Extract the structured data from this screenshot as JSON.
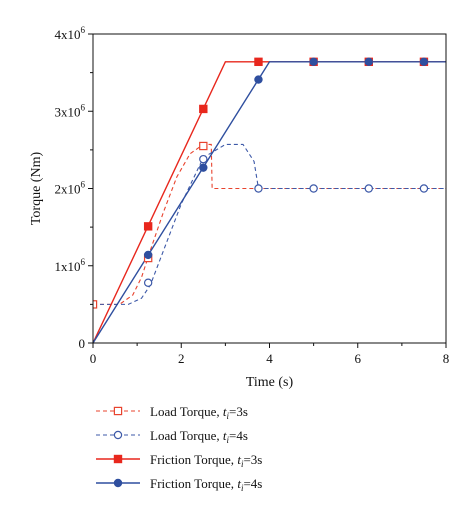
{
  "chart_data": {
    "type": "line",
    "xlabel": "Time (s)",
    "ylabel": "Torque (Nm)",
    "xlim": [
      0,
      8
    ],
    "ylim": [
      0,
      4000000
    ],
    "x_ticks": [
      0,
      2,
      4,
      6,
      8
    ],
    "x_tick_labels": [
      "0",
      "2",
      "4",
      "6",
      "8"
    ],
    "y_ticks": [
      0,
      1000000,
      2000000,
      3000000,
      4000000
    ],
    "y_tick_labels": [
      {
        "base": "0",
        "exp": ""
      },
      {
        "base": "1x10",
        "exp": "6"
      },
      {
        "base": "2x10",
        "exp": "6"
      },
      {
        "base": "3x10",
        "exp": "6"
      },
      {
        "base": "4x10",
        "exp": "6"
      }
    ],
    "grid": false,
    "legend_position": "bottom",
    "series": [
      {
        "name": "Load Torque, t_i=3s",
        "label_main": "Load Torque, ",
        "label_var": "t",
        "label_sub": "i",
        "label_tail": "=3s",
        "color": "#e8432e",
        "dash": true,
        "marker": "square-open",
        "curve": [
          [
            0,
            500000
          ],
          [
            0.6,
            500000
          ],
          [
            0.9,
            620000
          ],
          [
            1.1,
            850000
          ],
          [
            1.3,
            1200000
          ],
          [
            1.6,
            1700000
          ],
          [
            1.9,
            2150000
          ],
          [
            2.2,
            2450000
          ],
          [
            2.5,
            2570000
          ],
          [
            2.68,
            2570000
          ],
          [
            2.7,
            2000000
          ],
          [
            8,
            2000000
          ]
        ],
        "markers": [
          [
            0,
            500000
          ],
          [
            1.25,
            1100000
          ],
          [
            2.5,
            2550000
          ]
        ]
      },
      {
        "name": "Load Torque, t_i=4s",
        "label_main": "Load Torque, ",
        "label_var": "t",
        "label_sub": "i",
        "label_tail": "=4s",
        "color": "#3d59a8",
        "dash": true,
        "marker": "circle-open",
        "curve": [
          [
            0,
            500000
          ],
          [
            0.8,
            500000
          ],
          [
            1.1,
            580000
          ],
          [
            1.3,
            750000
          ],
          [
            1.6,
            1200000
          ],
          [
            2.0,
            1800000
          ],
          [
            2.5,
            2400000
          ],
          [
            3.0,
            2570000
          ],
          [
            3.4,
            2570000
          ],
          [
            3.65,
            2350000
          ],
          [
            3.75,
            2000000
          ],
          [
            8,
            2000000
          ]
        ],
        "markers": [
          [
            1.25,
            780000
          ],
          [
            2.5,
            2380000
          ],
          [
            3.75,
            2000000
          ],
          [
            5,
            2000000
          ],
          [
            6.25,
            2000000
          ],
          [
            7.5,
            2000000
          ]
        ]
      },
      {
        "name": "Friction Torque, t_i=3s",
        "label_main": "Friction Torque, ",
        "label_var": "t",
        "label_sub": "i",
        "label_tail": "=3s",
        "color": "#e8271d",
        "dash": false,
        "marker": "square-filled",
        "curve": [
          [
            0,
            0
          ],
          [
            3,
            3640000
          ],
          [
            8,
            3640000
          ]
        ],
        "markers": [
          [
            1.25,
            1510000
          ],
          [
            2.5,
            3030000
          ],
          [
            3.75,
            3640000
          ],
          [
            5,
            3640000
          ],
          [
            6.25,
            3640000
          ],
          [
            7.5,
            3640000
          ]
        ]
      },
      {
        "name": "Friction Torque, t_i=4s",
        "label_main": "Friction Torque, ",
        "label_var": "t",
        "label_sub": "i",
        "label_tail": "=4s",
        "color": "#2f4f9f",
        "dash": false,
        "marker": "circle-filled",
        "curve": [
          [
            0,
            0
          ],
          [
            4,
            3640000
          ],
          [
            8,
            3640000
          ]
        ],
        "markers": [
          [
            1.25,
            1140000
          ],
          [
            2.5,
            2270000
          ],
          [
            3.75,
            3410000
          ],
          [
            5,
            3640000
          ],
          [
            6.25,
            3640000
          ],
          [
            7.5,
            3640000
          ]
        ]
      }
    ]
  }
}
